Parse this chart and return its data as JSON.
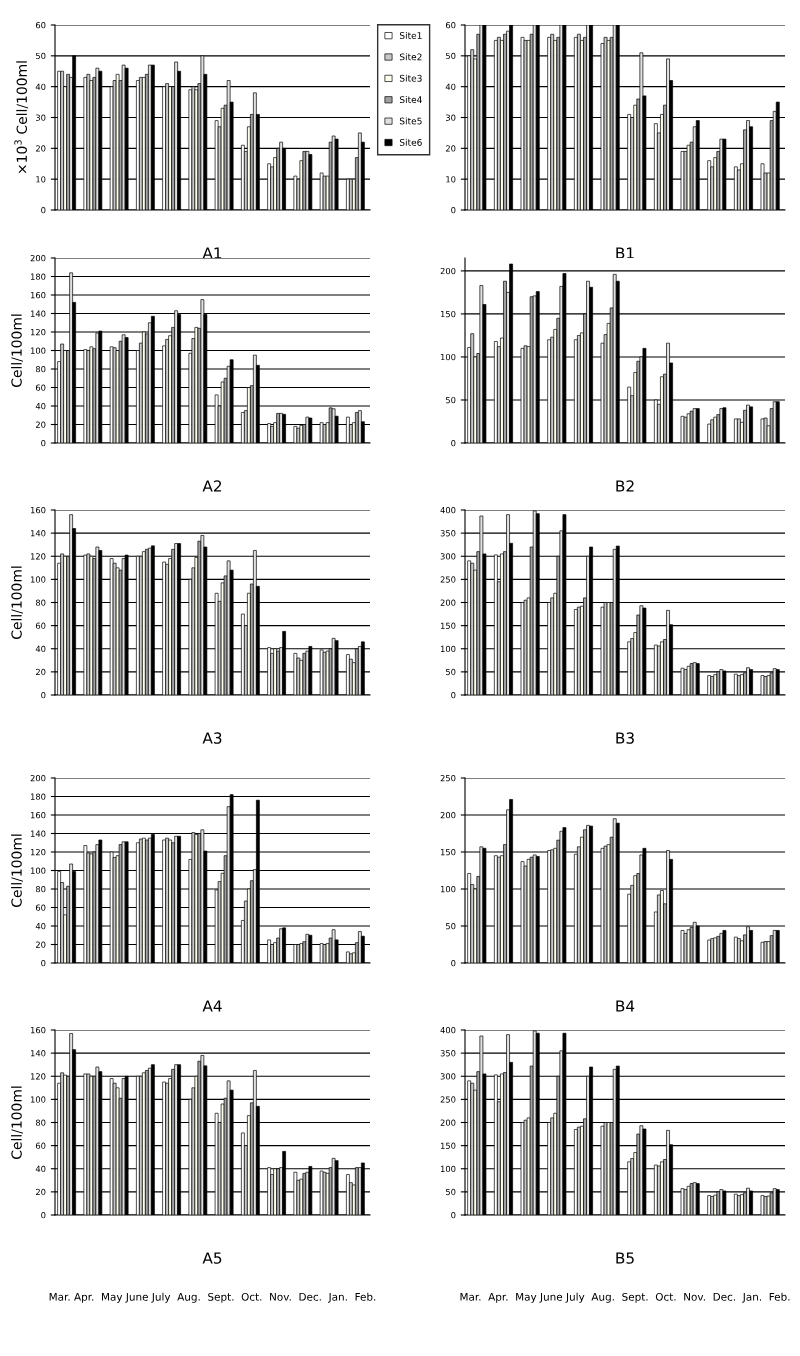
{
  "chart_data": [
    {
      "type": "bar",
      "title": "A1",
      "ylabel": "×10$^{3}$ Cell/100ml",
      "categories": [
        null,
        null,
        null,
        null,
        null,
        null,
        null,
        null,
        null,
        null,
        null,
        null
      ],
      "ylim": [
        0,
        60
      ],
      "yticks": [
        0,
        10,
        20,
        30,
        40,
        50,
        60
      ],
      "grid": "y",
      "legend": "right",
      "tick_labels": "y",
      "series": [
        {
          "name": "Site1",
          "color": "#ffffff",
          "values": [
            45,
            43,
            40,
            42,
            40,
            39,
            29,
            21,
            15,
            11,
            12,
            10
          ]
        },
        {
          "name": "Site2",
          "color": "#c8c8c8",
          "values": [
            45,
            44,
            42,
            43,
            41,
            40,
            27,
            19,
            14,
            10,
            11,
            10
          ]
        },
        {
          "name": "Site3",
          "color": "#fffff0",
          "values": [
            40,
            42,
            44,
            43,
            40,
            39,
            33,
            27,
            17,
            16,
            11,
            10
          ]
        },
        {
          "name": "Site4",
          "color": "#a0a0a0",
          "values": [
            44,
            43,
            42,
            44,
            40,
            41,
            34,
            31,
            20,
            19,
            22,
            17
          ]
        },
        {
          "name": "Site5",
          "color": "#e0e0e0",
          "values": [
            43,
            46,
            47,
            47,
            48,
            50,
            42,
            38,
            22,
            19,
            24,
            25
          ]
        },
        {
          "name": "Site6",
          "color": "#000000",
          "values": [
            50,
            45,
            46,
            47,
            45,
            44,
            35,
            31,
            20,
            18,
            23,
            22
          ]
        }
      ]
    },
    {
      "type": "bar",
      "title": "B1",
      "categories": [
        null,
        null,
        null,
        null,
        null,
        null,
        null,
        null,
        null,
        null,
        null,
        null
      ],
      "ylim": [
        0,
        60
      ],
      "yticks": [
        0,
        10,
        20,
        30,
        40,
        50,
        60
      ],
      "grid": "y",
      "tick_labels": "y",
      "series": [
        {
          "color": "#ffffff",
          "values": [
            50,
            55,
            56,
            56,
            56,
            54,
            31,
            28,
            19,
            16,
            14,
            15
          ]
        },
        {
          "color": "#c8c8c8",
          "values": [
            52,
            56,
            55,
            57,
            57,
            56,
            30,
            25,
            19,
            14,
            13,
            12
          ]
        },
        {
          "color": "#fffff0",
          "values": [
            49,
            55,
            55,
            55,
            55,
            55,
            34,
            31,
            21,
            17,
            15,
            12
          ]
        },
        {
          "color": "#a0a0a0",
          "values": [
            57,
            57,
            57,
            56,
            56,
            56,
            36,
            34,
            22,
            19,
            26,
            29
          ]
        },
        {
          "color": "#e0e0e0",
          "values": [
            60,
            58,
            60,
            60,
            60,
            60,
            51,
            49,
            27,
            23,
            29,
            32
          ]
        },
        {
          "color": "#000000",
          "values": [
            60,
            60,
            60,
            60,
            60,
            60,
            37,
            42,
            29,
            23,
            27,
            35
          ]
        }
      ]
    },
    {
      "type": "bar",
      "title": "A2",
      "ylabel": "Cell/100ml",
      "categories": [
        null,
        null,
        null,
        null,
        null,
        null,
        null,
        null,
        null,
        null,
        null,
        null
      ],
      "ylim": [
        0,
        200
      ],
      "yticks": [
        0,
        20,
        40,
        60,
        80,
        100,
        120,
        140,
        160,
        180,
        200
      ],
      "grid": "y",
      "tick_labels": "y",
      "series": [
        {
          "color": "#ffffff",
          "values": [
            88,
            101,
            104,
            100,
            105,
            97,
            52,
            33,
            21,
            18,
            22,
            28
          ]
        },
        {
          "color": "#c8c8c8",
          "values": [
            107,
            100,
            103,
            108,
            112,
            113,
            40,
            35,
            18,
            16,
            20,
            20
          ]
        },
        {
          "color": "#fffff0",
          "values": [
            100,
            104,
            100,
            120,
            116,
            125,
            66,
            60,
            22,
            19,
            22,
            22
          ]
        },
        {
          "color": "#a0a0a0",
          "values": [
            100,
            102,
            110,
            118,
            125,
            124,
            70,
            62,
            32,
            20,
            38,
            33
          ]
        },
        {
          "color": "#e0e0e0",
          "values": [
            184,
            119,
            117,
            130,
            143,
            155,
            83,
            95,
            32,
            28,
            37,
            35
          ]
        },
        {
          "color": "#000000",
          "values": [
            152,
            121,
            114,
            137,
            139,
            139,
            90,
            84,
            31,
            27,
            29,
            23
          ]
        }
      ]
    },
    {
      "type": "bar",
      "title": "B2",
      "categories": [
        null,
        null,
        null,
        null,
        null,
        null,
        null,
        null,
        null,
        null,
        null,
        null
      ],
      "ylim": [
        0,
        215
      ],
      "yticks": [
        0,
        50,
        100,
        150,
        200
      ],
      "grid": "y",
      "tick_labels": "y",
      "series": [
        {
          "color": "#ffffff",
          "values": [
            111,
            118,
            110,
            120,
            120,
            116,
            65,
            50,
            31,
            22,
            28,
            28
          ]
        },
        {
          "color": "#c8c8c8",
          "values": [
            127,
            112,
            113,
            123,
            125,
            126,
            55,
            45,
            30,
            27,
            28,
            29
          ]
        },
        {
          "color": "#fffff0",
          "values": [
            100,
            122,
            112,
            132,
            128,
            139,
            82,
            77,
            34,
            30,
            24,
            20
          ]
        },
        {
          "color": "#a0a0a0",
          "values": [
            104,
            188,
            170,
            145,
            150,
            157,
            95,
            80,
            37,
            33,
            38,
            40
          ]
        },
        {
          "color": "#e0e0e0",
          "values": [
            183,
            175,
            171,
            182,
            188,
            196,
            100,
            116,
            40,
            40,
            44,
            48
          ]
        },
        {
          "color": "#000000",
          "values": [
            161,
            208,
            176,
            197,
            181,
            188,
            110,
            93,
            40,
            41,
            42,
            48
          ]
        }
      ]
    },
    {
      "type": "bar",
      "title": "A3",
      "ylabel": "Cell/100ml",
      "categories": [
        null,
        null,
        null,
        null,
        null,
        null,
        null,
        null,
        null,
        null,
        null,
        null
      ],
      "ylim": [
        0,
        160
      ],
      "yticks": [
        0,
        20,
        40,
        60,
        80,
        100,
        120,
        140,
        160
      ],
      "grid": "y",
      "tick_labels": "y",
      "series": [
        {
          "color": "#ffffff",
          "values": [
            114,
            121,
            118,
            120,
            115,
            100,
            88,
            70,
            41,
            36,
            39,
            35
          ]
        },
        {
          "color": "#c8c8c8",
          "values": [
            122,
            122,
            114,
            120,
            113,
            110,
            81,
            60,
            36,
            32,
            37,
            31
          ]
        },
        {
          "color": "#fffff0",
          "values": [
            120,
            120,
            110,
            124,
            118,
            119,
            97,
            88,
            40,
            30,
            38,
            28
          ]
        },
        {
          "color": "#a0a0a0",
          "values": [
            120,
            118,
            108,
            126,
            126,
            133,
            103,
            96,
            38,
            36,
            40,
            40
          ]
        },
        {
          "color": "#e0e0e0",
          "values": [
            156,
            128,
            118,
            127,
            131,
            138,
            116,
            125,
            41,
            38,
            49,
            42
          ]
        },
        {
          "color": "#000000",
          "values": [
            144,
            125,
            121,
            129,
            131,
            128,
            108,
            94,
            55,
            42,
            47,
            46
          ]
        }
      ]
    },
    {
      "type": "bar",
      "title": "B3",
      "categories": [
        null,
        null,
        null,
        null,
        null,
        null,
        null,
        null,
        null,
        null,
        null,
        null
      ],
      "ylim": [
        0,
        400
      ],
      "yticks": [
        0,
        50,
        100,
        150,
        200,
        250,
        300,
        350,
        400
      ],
      "grid": "y",
      "tick_labels": "y",
      "series": [
        {
          "color": "#ffffff",
          "values": [
            290,
            303,
            200,
            200,
            185,
            190,
            115,
            108,
            58,
            42,
            45,
            42
          ]
        },
        {
          "color": "#c8c8c8",
          "values": [
            285,
            245,
            205,
            210,
            190,
            200,
            122,
            106,
            55,
            40,
            42,
            40
          ]
        },
        {
          "color": "#fffff0",
          "values": [
            270,
            305,
            210,
            220,
            192,
            200,
            135,
            115,
            62,
            44,
            44,
            42
          ]
        },
        {
          "color": "#a0a0a0",
          "values": [
            310,
            310,
            320,
            300,
            210,
            200,
            173,
            120,
            68,
            50,
            48,
            48
          ]
        },
        {
          "color": "#e0e0e0",
          "values": [
            387,
            390,
            398,
            355,
            300,
            315,
            193,
            183,
            70,
            55,
            59,
            57
          ]
        },
        {
          "color": "#000000",
          "values": [
            305,
            328,
            392,
            390,
            320,
            322,
            188,
            152,
            68,
            52,
            55,
            55
          ]
        }
      ]
    },
    {
      "type": "bar",
      "title": "A4",
      "ylabel": "Cell/100ml",
      "categories": [
        null,
        null,
        null,
        null,
        null,
        null,
        null,
        null,
        null,
        null,
        null,
        null
      ],
      "ylim": [
        0,
        200
      ],
      "yticks": [
        0,
        20,
        40,
        60,
        80,
        100,
        120,
        140,
        160,
        180,
        200
      ],
      "grid": "y",
      "tick_labels": "y",
      "series": [
        {
          "color": "#ffffff",
          "values": [
            99,
            127,
            120,
            130,
            133,
            112,
            79,
            46,
            25,
            20,
            21,
            12
          ]
        },
        {
          "color": "#c8c8c8",
          "values": [
            87,
            119,
            114,
            134,
            135,
            141,
            88,
            67,
            20,
            20,
            20,
            10
          ]
        },
        {
          "color": "#fffff0",
          "values": [
            52,
            118,
            116,
            135,
            133,
            139,
            97,
            80,
            22,
            21,
            21,
            11
          ]
        },
        {
          "color": "#a0a0a0",
          "values": [
            83,
            120,
            128,
            133,
            130,
            140,
            116,
            89,
            27,
            23,
            27,
            22
          ]
        },
        {
          "color": "#e0e0e0",
          "values": [
            107,
            128,
            131,
            135,
            137,
            144,
            169,
            101,
            37,
            31,
            36,
            34
          ]
        },
        {
          "color": "#000000",
          "values": [
            99,
            133,
            131,
            139,
            137,
            121,
            182,
            176,
            38,
            30,
            25,
            29
          ]
        }
      ]
    },
    {
      "type": "bar",
      "title": "B4",
      "categories": [
        null,
        null,
        null,
        null,
        null,
        null,
        null,
        null,
        null,
        null,
        null,
        null
      ],
      "ylim": [
        0,
        250
      ],
      "yticks": [
        0,
        50,
        100,
        150,
        200,
        250
      ],
      "grid": "y",
      "tick_labels": "y",
      "series": [
        {
          "color": "#ffffff",
          "values": [
            121,
            145,
            137,
            152,
            147,
            155,
            93,
            69,
            44,
            31,
            35,
            28
          ]
        },
        {
          "color": "#c8c8c8",
          "values": [
            106,
            143,
            131,
            153,
            157,
            158,
            105,
            92,
            40,
            33,
            33,
            29
          ]
        },
        {
          "color": "#fffff0",
          "values": [
            100,
            145,
            140,
            155,
            170,
            160,
            118,
            98,
            45,
            34,
            30,
            29
          ]
        },
        {
          "color": "#a0a0a0",
          "values": [
            117,
            160,
            143,
            166,
            180,
            170,
            121,
            80,
            48,
            36,
            38,
            37
          ]
        },
        {
          "color": "#e0e0e0",
          "values": [
            157,
            207,
            146,
            178,
            186,
            195,
            146,
            152,
            55,
            40,
            49,
            44
          ]
        },
        {
          "color": "#000000",
          "values": [
            155,
            221,
            144,
            183,
            185,
            189,
            155,
            140,
            50,
            44,
            44,
            44
          ]
        }
      ]
    },
    {
      "type": "bar",
      "title": "A5",
      "ylabel": "Cell/100ml",
      "categories": [
        null,
        null,
        null,
        null,
        null,
        null,
        null,
        null,
        null,
        null,
        null,
        null
      ],
      "ylim": [
        0,
        160
      ],
      "yticks": [
        0,
        20,
        40,
        60,
        80,
        100,
        120,
        140,
        160
      ],
      "grid": "y",
      "tick_labels": "y",
      "annotations": [
        "Mar. Apr.  May June July  Aug.  Sept.  Oct.  Nov.  Dec.  Jan.  Feb."
      ],
      "series": [
        {
          "color": "#ffffff",
          "values": [
            114,
            122,
            118,
            120,
            115,
            100,
            88,
            71,
            41,
            37,
            38,
            35
          ]
        },
        {
          "color": "#c8c8c8",
          "values": [
            123,
            122,
            114,
            120,
            114,
            110,
            80,
            60,
            35,
            30,
            37,
            28
          ]
        },
        {
          "color": "#fffff0",
          "values": [
            121,
            120,
            110,
            123,
            118,
            120,
            96,
            86,
            40,
            31,
            36,
            26
          ]
        },
        {
          "color": "#a0a0a0",
          "values": [
            120,
            120,
            101,
            125,
            126,
            133,
            101,
            97,
            40,
            36,
            41,
            41
          ]
        },
        {
          "color": "#e0e0e0",
          "values": [
            157,
            128,
            118,
            127,
            130,
            138,
            116,
            125,
            41,
            37,
            49,
            41
          ]
        },
        {
          "color": "#000000",
          "values": [
            143,
            124,
            120,
            130,
            130,
            129,
            108,
            94,
            55,
            42,
            47,
            45
          ]
        }
      ]
    },
    {
      "type": "bar",
      "title": "B5",
      "categories": [
        null,
        null,
        null,
        null,
        null,
        null,
        null,
        null,
        null,
        null,
        null,
        null
      ],
      "ylim": [
        0,
        400
      ],
      "yticks": [
        0,
        50,
        100,
        150,
        200,
        250,
        300,
        350,
        400
      ],
      "grid": "y",
      "tick_labels": "y",
      "annotations": [
        "Mar.  Apr.  May June July  Aug.  Sept.  Oct.  Nov.  Dec.  Jan.  Feb."
      ],
      "series": [
        {
          "color": "#ffffff",
          "values": [
            290,
            303,
            200,
            200,
            185,
            192,
            115,
            108,
            57,
            42,
            45,
            42
          ]
        },
        {
          "color": "#c8c8c8",
          "values": [
            285,
            245,
            205,
            210,
            190,
            200,
            122,
            106,
            55,
            40,
            42,
            40
          ]
        },
        {
          "color": "#fffff0",
          "values": [
            270,
            305,
            210,
            220,
            192,
            200,
            135,
            115,
            62,
            43,
            44,
            41
          ]
        },
        {
          "color": "#a0a0a0",
          "values": [
            310,
            308,
            322,
            300,
            208,
            200,
            175,
            120,
            68,
            50,
            48,
            48
          ]
        },
        {
          "color": "#e0e0e0",
          "values": [
            387,
            390,
            398,
            355,
            300,
            315,
            193,
            183,
            70,
            55,
            58,
            57
          ]
        },
        {
          "color": "#000000",
          "values": [
            305,
            330,
            393,
            393,
            320,
            322,
            186,
            152,
            68,
            52,
            52,
            55
          ]
        }
      ]
    }
  ]
}
